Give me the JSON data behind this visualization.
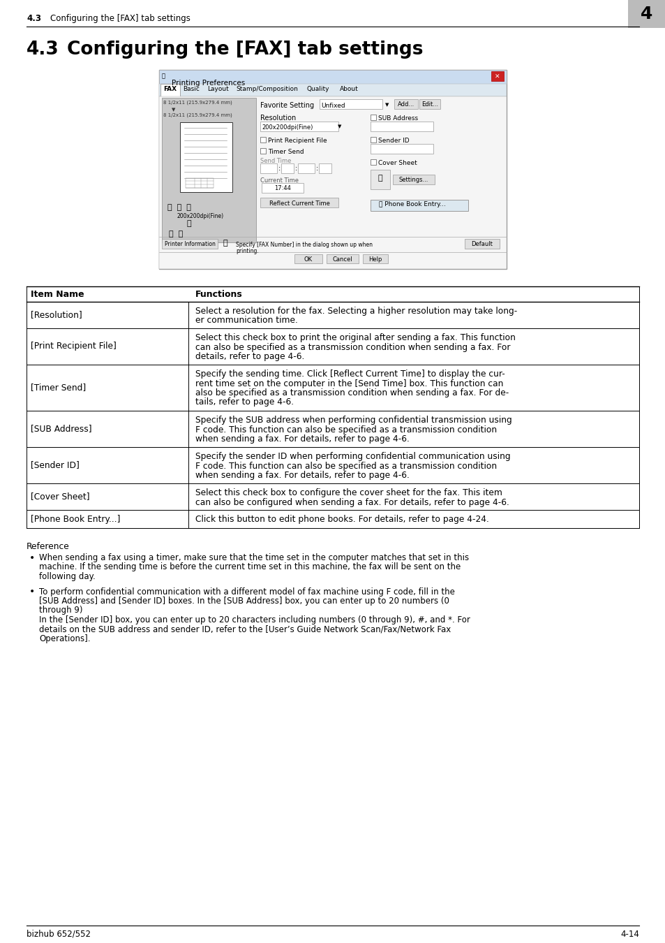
{
  "page_bg": "#ffffff",
  "footer_left": "bizhub 652/552",
  "footer_right": "4-14",
  "table_header_col1": "Item Name",
  "table_header_col2": "Functions",
  "table_rows": [
    {
      "col1": "[Resolution]",
      "col2": "Select a resolution for the fax. Selecting a higher resolution may take long-\ner communication time."
    },
    {
      "col1": "[Print Recipient File]",
      "col2": "Select this check box to print the original after sending a fax. This function\ncan also be specified as a transmission condition when sending a fax. For\ndetails, refer to page 4-6."
    },
    {
      "col1": "[Timer Send]",
      "col2": "Specify the sending time. Click [Reflect Current Time] to display the cur-\nrent time set on the computer in the [Send Time] box. This function can\nalso be specified as a transmission condition when sending a fax. For de-\ntails, refer to page 4-6."
    },
    {
      "col1": "[SUB Address]",
      "col2": "Specify the SUB address when performing confidential transmission using\nF code. This function can also be specified as a transmission condition\nwhen sending a fax. For details, refer to page 4-6."
    },
    {
      "col1": "[Sender ID]",
      "col2": "Specify the sender ID when performing confidential communication using\nF code. This function can also be specified as a transmission condition\nwhen sending a fax. For details, refer to page 4-6."
    },
    {
      "col1": "[Cover Sheet]",
      "col2": "Select this check box to configure the cover sheet for the fax. This item\ncan also be configured when sending a fax. For details, refer to page 4-6."
    },
    {
      "col1": "[Phone Book Entry...]",
      "col2": "Click this button to edit phone books. For details, refer to page 4-24."
    }
  ],
  "reference_title": "Reference",
  "reference_bullets": [
    "When sending a fax using a timer, make sure that the time set in the computer matches that set in this\nmachine. If the sending time is before the current time set in this machine, the fax will be sent on the\nfollowing day.",
    "To perform confidential communication with a different model of fax machine using F code, fill in the\n[SUB Address] and [Sender ID] boxes. In the [SUB Address] box, you can enter up to 20 numbers (0\nthrough 9)\nIn the [Sender ID] box, you can enter up to 20 characters including numbers (0 through 9), #, and *. For\ndetails on the SUB address and sender ID, refer to the [User’s Guide Network Scan/Fax/Network Fax\nOperations]."
  ]
}
